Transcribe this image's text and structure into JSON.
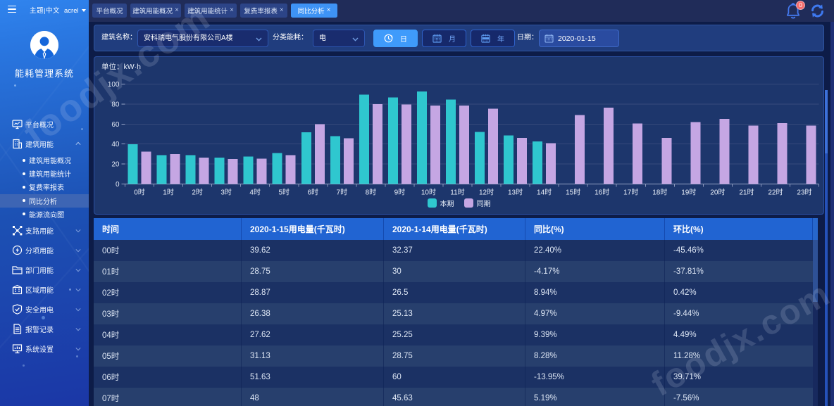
{
  "topbar": {
    "theme_lang_label": "主题|中文",
    "user_name": "acrel",
    "tabs": [
      {
        "id": "platform-overview",
        "label": "平台概况",
        "closable": false,
        "active": false
      },
      {
        "id": "building-energy-overview",
        "label": "建筑用能概况",
        "closable": true,
        "active": false
      },
      {
        "id": "building-energy-statistics",
        "label": "建筑用能统计",
        "closable": true,
        "active": false
      },
      {
        "id": "tariff-report",
        "label": "复费率报表",
        "closable": true,
        "active": false
      },
      {
        "id": "yoy-analysis",
        "label": "同比分析",
        "closable": true,
        "active": true
      }
    ],
    "notification_count": "0"
  },
  "sidebar": {
    "app_title": "能耗管理系统",
    "items": [
      {
        "id": "platform-overview",
        "label": "平台概况",
        "icon": "monitor-icon",
        "expandable": false
      },
      {
        "id": "building-energy",
        "label": "建筑用能",
        "icon": "building-icon",
        "expandable": true,
        "expanded": true,
        "children": [
          {
            "id": "building-energy-overview",
            "label": "建筑用能概况",
            "active": false
          },
          {
            "id": "building-energy-statistics",
            "label": "建筑用能统计",
            "active": false
          },
          {
            "id": "tariff-report",
            "label": "复费率报表",
            "active": false
          },
          {
            "id": "yoy-analysis",
            "label": "同比分析",
            "active": true
          },
          {
            "id": "energy-flow-diagram",
            "label": "能源流向图",
            "active": false
          }
        ]
      },
      {
        "id": "branch-energy",
        "label": "支路用能",
        "icon": "branch-icon",
        "expandable": true
      },
      {
        "id": "subentry-energy",
        "label": "分项用能",
        "icon": "subentry-icon",
        "expandable": true
      },
      {
        "id": "department-energy",
        "label": "部门用能",
        "icon": "folder-icon",
        "expandable": true
      },
      {
        "id": "region-energy",
        "label": "区域用能",
        "icon": "region-icon",
        "expandable": true
      },
      {
        "id": "safe-electricity",
        "label": "安全用电",
        "icon": "shield-icon",
        "expandable": true
      },
      {
        "id": "alarm-records",
        "label": "报警记录",
        "icon": "document-icon",
        "expandable": true
      },
      {
        "id": "system-settings",
        "label": "系统设置",
        "icon": "settings-icon",
        "expandable": true
      }
    ]
  },
  "filters": {
    "building_label": "建筑名称：",
    "building_value": "安科瑞电气股份有限公司A楼",
    "energy_type_label": "分类能耗：",
    "energy_type_value": "电",
    "period_buttons": [
      {
        "id": "day",
        "label": "日",
        "icon": "clock-icon",
        "active": true
      },
      {
        "id": "month",
        "label": "月",
        "icon": "calendar-icon",
        "active": false
      },
      {
        "id": "year",
        "label": "年",
        "icon": "calendar-year-icon",
        "active": false
      }
    ],
    "date_label": "日期：",
    "date_value": "2020-01-15"
  },
  "chart": {
    "unit_label": "单位：kW·h"
  },
  "chart_data": {
    "type": "bar",
    "title": "",
    "xlabel": "",
    "ylabel": "kW·h",
    "ylim": [
      0,
      100
    ],
    "yticks": [
      0,
      20,
      40,
      60,
      80,
      100
    ],
    "grid": true,
    "legend_position": "bottom",
    "categories": [
      "0时",
      "1时",
      "2时",
      "3时",
      "4时",
      "5时",
      "6时",
      "7时",
      "8时",
      "9时",
      "10时",
      "11时",
      "12时",
      "13时",
      "14时",
      "15时",
      "16时",
      "17时",
      "18时",
      "19时",
      "20时",
      "21时",
      "22时",
      "23时"
    ],
    "series": [
      {
        "name": "本期",
        "color": "#2fc7cf",
        "values": [
          39.62,
          28.75,
          28.87,
          26.38,
          27.62,
          31.13,
          51.63,
          48,
          89.5,
          86.5,
          92.5,
          84.5,
          52,
          48.5,
          42.5,
          null,
          null,
          null,
          null,
          null,
          null,
          null,
          null,
          null
        ]
      },
      {
        "name": "同期",
        "color": "#c5a6e3",
        "values": [
          32.37,
          30,
          26.5,
          25.13,
          25.25,
          28.75,
          60,
          45.63,
          80,
          79.5,
          78.5,
          78.5,
          75.5,
          46,
          41,
          69,
          76.5,
          60.5,
          46,
          62,
          65,
          58.5,
          61,
          58.5
        ]
      }
    ]
  },
  "table": {
    "columns": [
      "时间",
      "2020-1-15用电量(千瓦时)",
      "2020-1-14用电量(千瓦时)",
      "同比(%)",
      "环比(%)"
    ],
    "rows": [
      [
        "00时",
        "39.62",
        "32.37",
        "22.40%",
        "-45.46%"
      ],
      [
        "01时",
        "28.75",
        "30",
        "-4.17%",
        "-37.81%"
      ],
      [
        "02时",
        "28.87",
        "26.5",
        "8.94%",
        "0.42%"
      ],
      [
        "03时",
        "26.38",
        "25.13",
        "4.97%",
        "-9.44%"
      ],
      [
        "04时",
        "27.62",
        "25.25",
        "9.39%",
        "4.49%"
      ],
      [
        "05时",
        "31.13",
        "28.75",
        "8.28%",
        "11.28%"
      ],
      [
        "06时",
        "51.63",
        "60",
        "-13.95%",
        "39.71%"
      ],
      [
        "07时",
        "48",
        "45.63",
        "5.19%",
        "-7.56%"
      ]
    ]
  },
  "watermark": {
    "text": "foodjx.com"
  },
  "colors": {
    "accent_blue": "#3e93f5",
    "series_current": "#2fc7cf",
    "series_previous": "#c5a6e3",
    "table_header": "#2164d2",
    "badge_red": "#f56c6c"
  }
}
